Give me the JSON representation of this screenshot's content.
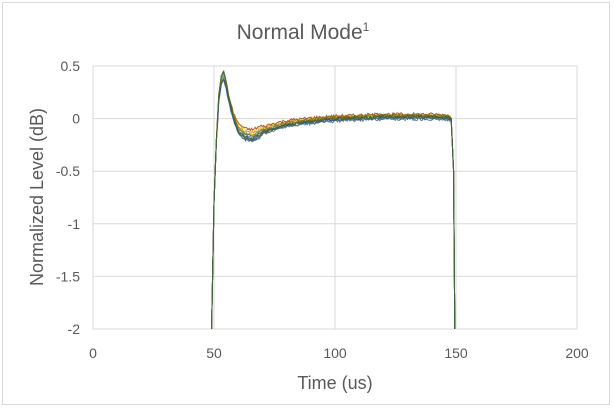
{
  "chart_data": {
    "type": "line",
    "title": "Normal Mode",
    "title_superscript": "1",
    "xlabel": "Time (us)",
    "ylabel": "Normalized Level (dB)",
    "xlim": [
      0,
      200
    ],
    "ylim": [
      -2,
      0.5
    ],
    "xticks": [
      0,
      50,
      100,
      150,
      200
    ],
    "yticks": [
      0.5,
      0,
      -0.5,
      -1,
      -1.5,
      -2
    ],
    "xtick_labels": [
      "0",
      "50",
      "100",
      "150",
      "200"
    ],
    "ytick_labels": [
      "0.5",
      "0",
      "-0.5",
      "-1",
      "-1.5",
      "-2"
    ],
    "grid": true,
    "legend": "none",
    "envelope": {
      "x": [
        49,
        50,
        51,
        52,
        53,
        54,
        55,
        56,
        58,
        60,
        63,
        66,
        70,
        75,
        80,
        90,
        100,
        110,
        120,
        130,
        140,
        147,
        148,
        149,
        149.5
      ],
      "y": [
        -2,
        -0.8,
        -0.2,
        0.2,
        0.36,
        0.4,
        0.32,
        0.2,
        0.02,
        -0.1,
        -0.16,
        -0.17,
        -0.12,
        -0.08,
        -0.05,
        -0.02,
        0,
        0.01,
        0.02,
        0.02,
        0.02,
        0.01,
        0.0,
        -0.5,
        -2
      ]
    },
    "series": [
      {
        "color": "#4472c4",
        "offset": 0.0,
        "scale": 1.0
      },
      {
        "color": "#ed7d31",
        "offset": 0.02,
        "scale": 0.92
      },
      {
        "color": "#a5a5a5",
        "offset": -0.02,
        "scale": 1.05
      },
      {
        "color": "#ffc000",
        "offset": 0.03,
        "scale": 0.88
      },
      {
        "color": "#5b9bd5",
        "offset": -0.03,
        "scale": 1.1
      },
      {
        "color": "#70ad47",
        "offset": 0.01,
        "scale": 0.95
      },
      {
        "color": "#264478",
        "offset": -0.01,
        "scale": 1.15
      },
      {
        "color": "#9e480e",
        "offset": 0.04,
        "scale": 0.85
      },
      {
        "color": "#636363",
        "offset": -0.04,
        "scale": 1.02
      },
      {
        "color": "#997300",
        "offset": 0.02,
        "scale": 1.08
      },
      {
        "color": "#255e91",
        "offset": -0.02,
        "scale": 0.98
      },
      {
        "color": "#43682b",
        "offset": 0.0,
        "scale": 1.12
      }
    ]
  }
}
